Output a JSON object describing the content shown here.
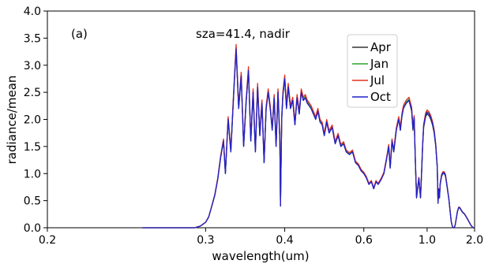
{
  "chart_data": {
    "type": "line",
    "panel_label": "(a)",
    "annotation": "sza=41.4, nadir",
    "xlabel": "wavelength(um)",
    "ylabel": "radiance/mean",
    "xscale": "reciprocal",
    "xlim": [
      0.2,
      2.0
    ],
    "ylim": [
      0.0,
      4.0
    ],
    "xticks": [
      0.2,
      0.3,
      0.4,
      0.6,
      1.0,
      2.0
    ],
    "xtick_labels": [
      "0.2",
      "0.3",
      "0.4",
      "0.6",
      "1.0",
      "2.0"
    ],
    "yticks": [
      0.0,
      0.5,
      1.0,
      1.5,
      2.0,
      2.5,
      3.0,
      3.5,
      4.0
    ],
    "ytick_labels": [
      "0.0",
      "0.5",
      "1.0",
      "1.5",
      "2.0",
      "2.5",
      "3.0",
      "3.5",
      "4.0"
    ],
    "grid": false,
    "legend_position": "upper-right",
    "base_curve": {
      "x": [
        0.25,
        0.29,
        0.295,
        0.3,
        0.303,
        0.306,
        0.309,
        0.312,
        0.315,
        0.318,
        0.32,
        0.323,
        0.326,
        0.329,
        0.332,
        0.335,
        0.338,
        0.341,
        0.344,
        0.347,
        0.35,
        0.353,
        0.356,
        0.359,
        0.362,
        0.365,
        0.368,
        0.371,
        0.374,
        0.377,
        0.38,
        0.383,
        0.386,
        0.389,
        0.392,
        0.393,
        0.395,
        0.397,
        0.4,
        0.403,
        0.406,
        0.41,
        0.414,
        0.418,
        0.422,
        0.426,
        0.43,
        0.434,
        0.438,
        0.442,
        0.446,
        0.45,
        0.455,
        0.46,
        0.465,
        0.47,
        0.475,
        0.48,
        0.486,
        0.492,
        0.5,
        0.508,
        0.516,
        0.524,
        0.532,
        0.54,
        0.55,
        0.56,
        0.57,
        0.58,
        0.59,
        0.6,
        0.61,
        0.62,
        0.63,
        0.64,
        0.65,
        0.66,
        0.675,
        0.687,
        0.7,
        0.712,
        0.72,
        0.73,
        0.74,
        0.755,
        0.762,
        0.77,
        0.78,
        0.79,
        0.8,
        0.82,
        0.84,
        0.86,
        0.87,
        0.88,
        0.89,
        0.9,
        0.92,
        0.935,
        0.945,
        0.955,
        0.965,
        0.975,
        0.985,
        1.0,
        1.02,
        1.04,
        1.06,
        1.08,
        1.1,
        1.12,
        1.13,
        1.14,
        1.15,
        1.16,
        1.18,
        1.2,
        1.22,
        1.24,
        1.26,
        1.28,
        1.3,
        1.32,
        1.34,
        1.36,
        1.38,
        1.4,
        1.42,
        1.44,
        1.47,
        1.5,
        1.53,
        1.56,
        1.6,
        1.65,
        1.7,
        1.75,
        1.8,
        1.85,
        1.9,
        1.95,
        2.0
      ],
      "y": [
        0.0,
        0.0,
        0.03,
        0.1,
        0.2,
        0.4,
        0.6,
        0.9,
        1.3,
        1.6,
        1.0,
        2.0,
        1.4,
        2.4,
        3.3,
        2.2,
        2.8,
        1.5,
        2.3,
        2.9,
        1.6,
        2.5,
        1.4,
        2.6,
        1.7,
        2.3,
        1.2,
        2.2,
        2.5,
        2.2,
        1.8,
        2.4,
        1.5,
        2.5,
        1.6,
        0.4,
        2.0,
        2.45,
        2.75,
        2.2,
        2.6,
        2.2,
        2.35,
        1.9,
        2.4,
        2.1,
        2.5,
        2.35,
        2.4,
        2.3,
        2.25,
        2.2,
        2.1,
        2.0,
        2.15,
        1.95,
        1.9,
        1.7,
        1.95,
        1.75,
        1.85,
        1.55,
        1.7,
        1.5,
        1.55,
        1.4,
        1.35,
        1.4,
        1.2,
        1.15,
        1.05,
        1.0,
        0.92,
        0.8,
        0.85,
        0.72,
        0.85,
        0.8,
        0.9,
        1.0,
        1.25,
        1.5,
        1.1,
        1.6,
        1.4,
        1.8,
        1.9,
        2.0,
        1.8,
        2.05,
        2.2,
        2.3,
        2.35,
        2.15,
        1.8,
        2.0,
        1.2,
        0.55,
        0.9,
        0.55,
        1.0,
        1.5,
        1.85,
        1.95,
        2.05,
        2.1,
        2.07,
        2.0,
        1.9,
        1.75,
        1.5,
        1.1,
        0.45,
        0.7,
        0.55,
        0.8,
        0.95,
        1.0,
        1.0,
        0.95,
        0.8,
        0.65,
        0.5,
        0.3,
        0.12,
        0.03,
        0.0,
        0.0,
        0.05,
        0.15,
        0.3,
        0.37,
        0.36,
        0.32,
        0.28,
        0.25,
        0.2,
        0.15,
        0.1,
        0.05,
        0.02,
        0.0,
        0.0
      ]
    },
    "series": [
      {
        "name": "Apr",
        "color": "#333333",
        "vis_factor": 1.0,
        "ir_factor": 1.0
      },
      {
        "name": "Jan",
        "color": "#2ca02c",
        "vis_factor": 1.01,
        "ir_factor": 1.02
      },
      {
        "name": "Jul",
        "color": "#e03020",
        "vis_factor": 1.025,
        "ir_factor": 1.035
      },
      {
        "name": "Oct",
        "color": "#2020cc",
        "vis_factor": 1.0,
        "ir_factor": 1.015
      }
    ]
  }
}
